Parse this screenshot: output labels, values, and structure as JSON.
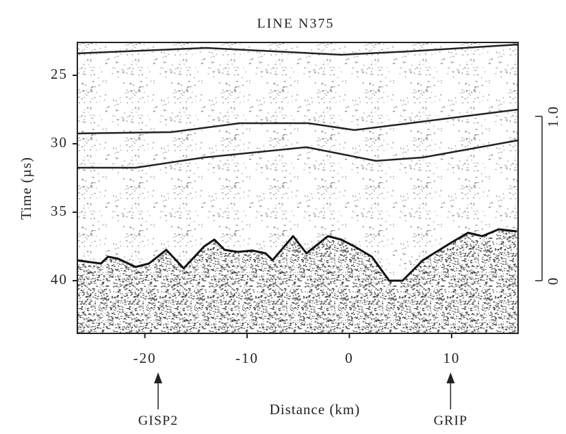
{
  "chart_data": {
    "type": "line",
    "title": "LINE N375",
    "xlabel": "Distance (km)",
    "ylabel": "Time (µs)",
    "xlim": [
      -26.6,
      16.5
    ],
    "ylim": [
      22.6,
      43.85
    ],
    "y_inverted": true,
    "xticks": [
      -20,
      -10,
      0,
      10
    ],
    "yticks": [
      25,
      30,
      35,
      40
    ],
    "y2lim": [
      0,
      1
    ],
    "y2ticks": [
      0,
      {
        "value": 1,
        "label": "1.0"
      }
    ],
    "series": [
      {
        "color": "#111",
        "area": true,
        "x": [
          -26.8,
          -24.3,
          -23.6,
          -22.6,
          -20.9,
          -19.6,
          -17.9,
          -16.2,
          -14.2,
          -13.2,
          -12.2,
          -10.9,
          -9.5,
          -8.2,
          -7.5,
          -5.5,
          -4.2,
          -2.1,
          -0.8,
          0.5,
          2.2,
          3.9,
          5.2,
          7.2,
          9.9,
          11.6,
          13.0,
          14.6,
          16.4
        ],
        "values": [
          38.5,
          38.75,
          38.25,
          38.4,
          39.0,
          38.75,
          37.75,
          39.1,
          37.5,
          37.0,
          37.75,
          37.9,
          37.8,
          38.0,
          38.5,
          36.75,
          38.0,
          36.75,
          37.0,
          37.5,
          38.25,
          40.0,
          40.0,
          38.5,
          37.25,
          36.5,
          36.75,
          36.25,
          36.4
        ]
      },
      {
        "color": "#222",
        "x": [
          -26.6,
          -14.0,
          -0.8,
          5.9,
          16.5
        ],
        "values": [
          23.4,
          23.0,
          23.5,
          23.25,
          22.75
        ]
      },
      {
        "color": "#222",
        "x": [
          -26.6,
          -17.4,
          -10.7,
          -4.0,
          0.5,
          5.9,
          16.5
        ],
        "values": [
          29.25,
          29.15,
          28.5,
          28.5,
          29.0,
          28.5,
          27.5
        ]
      },
      {
        "color": "#222",
        "x": [
          -26.6,
          -20.9,
          -14.2,
          -4.2,
          2.6,
          7.2,
          16.5
        ],
        "values": [
          31.75,
          31.75,
          31.0,
          30.25,
          31.25,
          31.0,
          29.75
        ]
      }
    ],
    "annotations": [
      {
        "text": "GISP2",
        "x": -18.7
      },
      {
        "text": "GRIP",
        "x": 9.9
      }
    ]
  }
}
